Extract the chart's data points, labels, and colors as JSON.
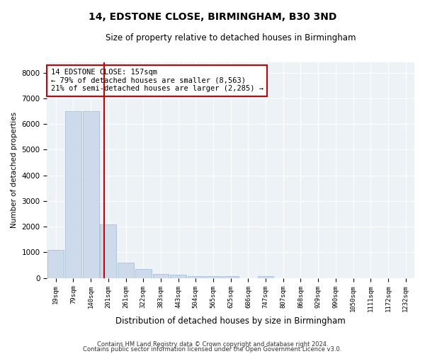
{
  "title1": "14, EDSTONE CLOSE, BIRMINGHAM, B30 3ND",
  "title2": "Size of property relative to detached houses in Birmingham",
  "xlabel": "Distribution of detached houses by size in Birmingham",
  "ylabel": "Number of detached properties",
  "bar_labels": [
    "19sqm",
    "79sqm",
    "140sqm",
    "201sqm",
    "261sqm",
    "322sqm",
    "383sqm",
    "443sqm",
    "504sqm",
    "565sqm",
    "625sqm",
    "686sqm",
    "747sqm",
    "807sqm",
    "868sqm",
    "929sqm",
    "990sqm",
    "1050sqm",
    "1111sqm",
    "1172sqm",
    "1232sqm"
  ],
  "bar_values": [
    1100,
    6500,
    6500,
    2100,
    600,
    350,
    150,
    120,
    80,
    80,
    80,
    0,
    80,
    0,
    0,
    0,
    0,
    0,
    0,
    0,
    0
  ],
  "bar_color": "#ccdaeb",
  "bar_edge_color": "#a8c0d8",
  "property_line_color": "#cc0000",
  "annotation_text": "14 EDSTONE CLOSE: 157sqm\n← 79% of detached houses are smaller (8,563)\n21% of semi-detached houses are larger (2,285) →",
  "annotation_box_color": "#cc0000",
  "ylim": [
    0,
    8400
  ],
  "yticks": [
    0,
    1000,
    2000,
    3000,
    4000,
    5000,
    6000,
    7000,
    8000
  ],
  "footer1": "Contains HM Land Registry data © Crown copyright and database right 2024.",
  "footer2": "Contains public sector information licensed under the Open Government Licence v3.0.",
  "plot_bg_color": "#edf2f7"
}
